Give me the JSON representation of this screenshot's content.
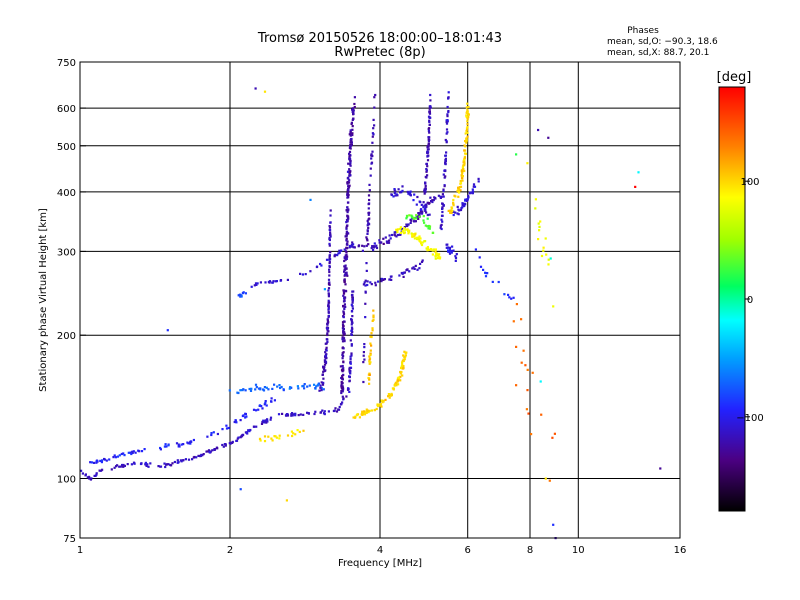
{
  "chart_data": {
    "type": "scatter",
    "title": "Tromsø 20150526 18:00:00–18:01:43",
    "subtitle": "RwPretec (8p)",
    "xlabel": "Frequency [MHz]",
    "ylabel": "Stationary phase Virtual Height [km]",
    "x_scale": "log",
    "y_scale": "log",
    "xlim": [
      1,
      16
    ],
    "ylim": [
      75,
      750
    ],
    "x_ticks": [
      1,
      2,
      4,
      6,
      8,
      10,
      16
    ],
    "x_tick_labels": [
      "1",
      "2",
      "4",
      "6",
      "8",
      "10",
      "16"
    ],
    "x_grid": [
      1,
      2,
      4,
      6,
      8,
      10,
      16
    ],
    "y_ticks": [
      75,
      100,
      200,
      300,
      400,
      500,
      600,
      750
    ],
    "y_tick_labels": [
      "75",
      "100",
      "200",
      "300",
      "400",
      "500",
      "600",
      "750"
    ],
    "y_grid": [
      100,
      200,
      300,
      400,
      500,
      600
    ],
    "grid": true,
    "phase_box": {
      "heading": "Phases",
      "line_o": "mean, sd,O: −90.3, 18.6",
      "line_x": "mean, sd,X:  88.7, 20.1"
    },
    "colorbar": {
      "label": "[deg]",
      "range": [
        -180,
        180
      ],
      "ticks": [
        100,
        0,
        -100
      ],
      "tick_labels": [
        "100",
        "0",
        "−100"
      ],
      "placement": "right"
    },
    "clusters": [
      {
        "trace": [
          [
            1.0,
            104
          ],
          [
            1.05,
            100
          ],
          [
            1.1,
            104
          ],
          [
            1.2,
            106
          ],
          [
            1.3,
            108
          ],
          [
            1.45,
            106
          ],
          [
            1.6,
            109
          ],
          [
            1.75,
            112
          ],
          [
            1.9,
            116
          ],
          [
            2.05,
            120
          ],
          [
            2.2,
            127
          ],
          [
            2.35,
            132
          ],
          [
            2.5,
            136
          ],
          [
            2.7,
            136
          ],
          [
            2.9,
            137
          ],
          [
            3.1,
            138
          ],
          [
            3.3,
            140
          ],
          [
            3.45,
            152
          ],
          [
            3.5,
            180
          ],
          [
            3.52,
            250
          ]
        ],
        "jitter": [
          0.006,
          0.012
        ],
        "count": 240,
        "phase": -115
      },
      {
        "trace": [
          [
            1.05,
            108
          ],
          [
            1.2,
            112
          ],
          [
            1.4,
            116
          ],
          [
            1.6,
            118
          ],
          [
            1.8,
            122
          ],
          [
            2.0,
            130
          ],
          [
            2.2,
            138
          ],
          [
            2.4,
            145
          ],
          [
            2.6,
            150
          ]
        ],
        "jitter": [
          0.008,
          0.018
        ],
        "count": 90,
        "phase": -95
      },
      {
        "trace": [
          [
            2.0,
            152
          ],
          [
            2.3,
            155
          ],
          [
            2.6,
            156
          ],
          [
            2.9,
            156
          ],
          [
            3.1,
            155
          ]
        ],
        "jitter": [
          0.015,
          0.025
        ],
        "count": 50,
        "phase": -70
      },
      {
        "trace": [
          [
            2.05,
            242
          ],
          [
            2.15,
            245
          ]
        ],
        "jitter": [
          0.01,
          0.02
        ],
        "count": 12,
        "phase": -80
      },
      {
        "trace": [
          [
            2.2,
            255
          ],
          [
            2.6,
            262
          ],
          [
            2.9,
            272
          ],
          [
            3.1,
            285
          ],
          [
            3.3,
            298
          ],
          [
            3.5,
            310
          ]
        ],
        "jitter": [
          0.008,
          0.012
        ],
        "count": 40,
        "phase": -110
      },
      {
        "trace": [
          [
            3.0,
            150
          ],
          [
            3.1,
            172
          ],
          [
            3.15,
            220
          ],
          [
            3.17,
            300
          ],
          [
            3.18,
            360
          ]
        ],
        "jitter": [
          0.004,
          0.08
        ],
        "count": 110,
        "phase": -120
      },
      {
        "trace": [
          [
            3.35,
            150
          ],
          [
            3.4,
            250
          ],
          [
            3.45,
            400
          ],
          [
            3.5,
            520
          ],
          [
            3.55,
            640
          ]
        ],
        "jitter": [
          0.01,
          0.05
        ],
        "count": 260,
        "phase": -125
      },
      {
        "trace": [
          [
            3.7,
            160
          ],
          [
            3.75,
            270
          ],
          [
            3.8,
            380
          ],
          [
            3.85,
            480
          ],
          [
            3.9,
            640
          ]
        ],
        "jitter": [
          0.006,
          0.04
        ],
        "count": 60,
        "phase": -120
      },
      {
        "trace": [
          [
            3.5,
            310
          ],
          [
            3.8,
            305
          ],
          [
            4.1,
            315
          ],
          [
            4.4,
            330
          ],
          [
            4.7,
            350
          ],
          [
            5.0,
            380
          ],
          [
            5.3,
            395
          ]
        ],
        "jitter": [
          0.01,
          0.025
        ],
        "count": 100,
        "phase": -120
      },
      {
        "trace": [
          [
            3.7,
            255
          ],
          [
            4.1,
            262
          ],
          [
            4.5,
            270
          ],
          [
            4.9,
            285
          ]
        ],
        "jitter": [
          0.01,
          0.02
        ],
        "count": 40,
        "phase": -115
      },
      {
        "trace": [
          [
            4.2,
            395
          ],
          [
            4.5,
            405
          ],
          [
            4.8,
            380
          ],
          [
            5.0,
            360
          ]
        ],
        "jitter": [
          0.01,
          0.03
        ],
        "count": 40,
        "phase": -110
      },
      {
        "trace": [
          [
            4.9,
            380
          ],
          [
            5.0,
            500
          ],
          [
            5.05,
            650
          ]
        ],
        "jitter": [
          0.006,
          0.04
        ],
        "count": 70,
        "phase": -120
      },
      {
        "trace": [
          [
            5.3,
            330
          ],
          [
            5.4,
            450
          ],
          [
            5.5,
            650
          ]
        ],
        "jitter": [
          0.006,
          0.04
        ],
        "count": 60,
        "phase": -115
      },
      {
        "trace": [
          [
            5.6,
            360
          ],
          [
            5.8,
            370
          ],
          [
            6.0,
            390
          ],
          [
            6.3,
            420
          ]
        ],
        "jitter": [
          0.01,
          0.03
        ],
        "count": 40,
        "phase": -110
      },
      {
        "trace": [
          [
            5.4,
            310
          ],
          [
            5.6,
            300
          ],
          [
            5.7,
            290
          ]
        ],
        "jitter": [
          0.01,
          0.03
        ],
        "count": 20,
        "phase": -105
      },
      {
        "trace": [
          [
            3.55,
            135
          ],
          [
            3.9,
            140
          ],
          [
            4.2,
            150
          ],
          [
            4.4,
            165
          ],
          [
            4.5,
            185
          ]
        ],
        "jitter": [
          0.01,
          0.02
        ],
        "count": 110,
        "phase": 100
      },
      {
        "trace": [
          [
            3.8,
            160
          ],
          [
            3.85,
            205
          ],
          [
            3.9,
            230
          ]
        ],
        "jitter": [
          0.006,
          0.04
        ],
        "count": 30,
        "phase": 105
      },
      {
        "trace": [
          [
            4.3,
            335
          ],
          [
            4.7,
            325
          ],
          [
            5.0,
            305
          ],
          [
            5.3,
            290
          ]
        ],
        "jitter": [
          0.012,
          0.03
        ],
        "count": 70,
        "phase": 85
      },
      {
        "trace": [
          [
            5.5,
            360
          ],
          [
            5.7,
            390
          ],
          [
            5.85,
            430
          ],
          [
            5.95,
            500
          ],
          [
            6.0,
            600
          ]
        ],
        "jitter": [
          0.008,
          0.04
        ],
        "count": 100,
        "phase": 100
      },
      {
        "trace": [
          [
            2.3,
            120
          ],
          [
            2.6,
            124
          ],
          [
            2.8,
            126
          ]
        ],
        "jitter": [
          0.02,
          0.02
        ],
        "count": 20,
        "phase": 95
      },
      {
        "trace": [
          [
            4.5,
            350
          ],
          [
            4.8,
            360
          ],
          [
            5.1,
            330
          ]
        ],
        "jitter": [
          0.01,
          0.03
        ],
        "count": 25,
        "phase": 30
      },
      {
        "trace": [
          [
            6.2,
            300
          ],
          [
            6.6,
            260
          ],
          [
            7.0,
            250
          ],
          [
            7.4,
            240
          ],
          [
            7.6,
            230
          ]
        ],
        "jitter": [
          0.02,
          0.05
        ],
        "count": 15,
        "phase": -90
      },
      {
        "trace": [
          [
            7.5,
            200
          ],
          [
            7.8,
            180
          ],
          [
            8.0,
            150
          ],
          [
            8.5,
            130
          ],
          [
            9.0,
            120
          ]
        ],
        "jitter": [
          0.05,
          0.25
        ],
        "count": 18,
        "phase": 140
      },
      {
        "trace": [
          [
            8.0,
            420
          ],
          [
            8.3,
            360
          ],
          [
            8.5,
            300
          ],
          [
            8.7,
            280
          ]
        ],
        "jitter": [
          0.03,
          0.1
        ],
        "count": 14,
        "phase": 80
      }
    ],
    "outliers": [
      [
        2.25,
        660,
        -120
      ],
      [
        2.35,
        650,
        95
      ],
      [
        2.6,
        90,
        100
      ],
      [
        2.9,
        385,
        -60
      ],
      [
        3.1,
        250,
        -50
      ],
      [
        1.5,
        205,
        -90
      ],
      [
        2.1,
        95,
        -80
      ],
      [
        7.5,
        480,
        20
      ],
      [
        7.9,
        460,
        90
      ],
      [
        8.3,
        540,
        -120
      ],
      [
        8.6,
        100,
        95
      ],
      [
        8.7,
        520,
        -130
      ],
      [
        8.9,
        80,
        -90
      ],
      [
        9.0,
        75,
        -120
      ],
      [
        13.0,
        410,
        180
      ],
      [
        13.2,
        440,
        -20
      ],
      [
        14.6,
        105,
        -130
      ],
      [
        8.8,
        290,
        -10
      ],
      [
        8.9,
        230,
        80
      ],
      [
        8.4,
        160,
        -20
      ]
    ]
  }
}
